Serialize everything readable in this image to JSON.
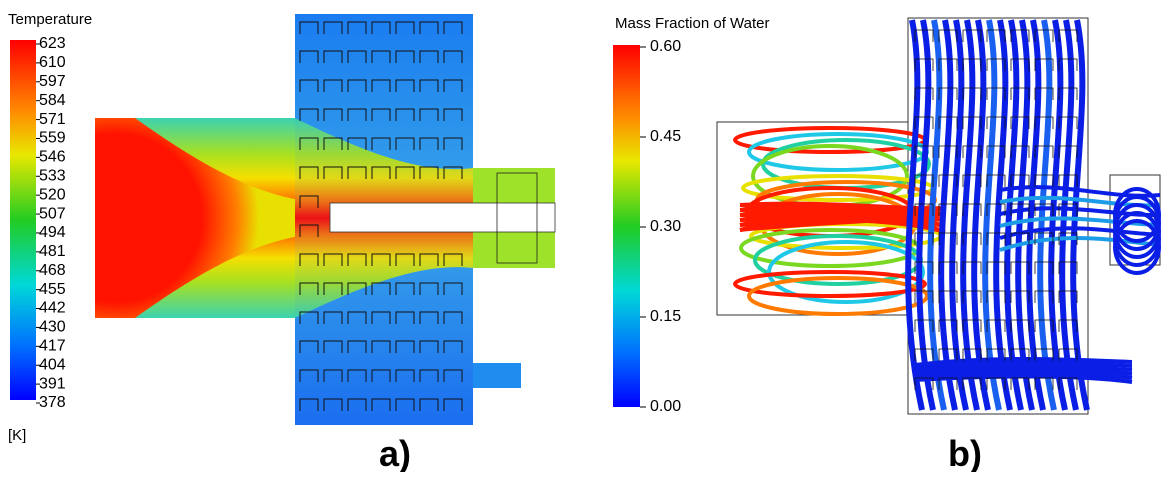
{
  "panel_a": {
    "colorbar_title": "Temperature",
    "colorbar_ticks": [
      "623",
      "610",
      "597",
      "584",
      "571",
      "559",
      "546",
      "533",
      "520",
      "507",
      "494",
      "481",
      "468",
      "455",
      "442",
      "430",
      "417",
      "404",
      "391",
      "378"
    ],
    "unit": "[K]",
    "label": "a)"
  },
  "panel_b": {
    "colorbar_title": "Mass Fraction of Water",
    "colorbar_ticks": [
      "0.60",
      "0.45",
      "0.30",
      "0.15",
      "0.00"
    ],
    "label": "b)"
  }
}
